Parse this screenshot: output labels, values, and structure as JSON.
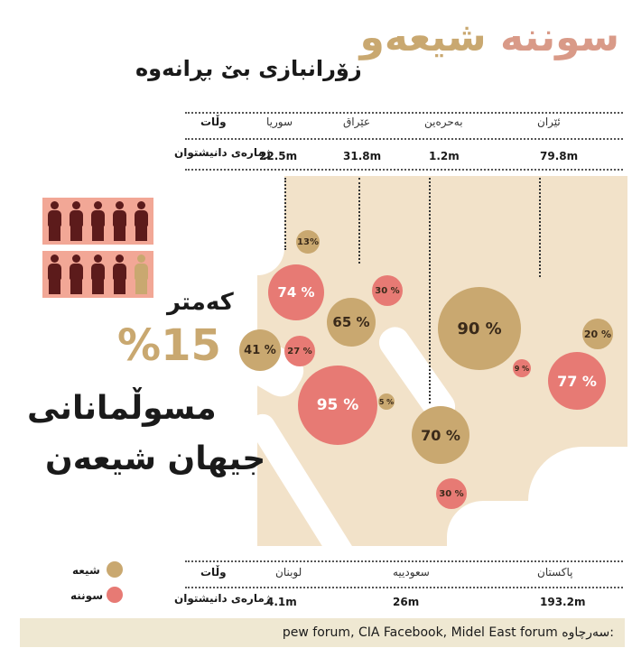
{
  "title": {
    "word1": "شیعەو",
    "word2": "سوننە"
  },
  "subtitle": "زۆرانبازی بێ بڕانەوە",
  "top_table": {
    "header_label": "وڵات",
    "row_label": "ژمارەی دانیشتوان",
    "countries": [
      "سوریا",
      "عێراق",
      "بەحرەین",
      "ئێران"
    ],
    "populations": [
      "22.5m",
      "31.8m",
      "1.2m",
      "79.8m"
    ]
  },
  "bottom_table": {
    "header_label": "وڵات",
    "row_label": "ژمارەی دانیشتوان",
    "countries": [
      "لوبنان",
      "سعودییە",
      "پاکستان"
    ],
    "populations": [
      "4.1m",
      "26m",
      "193.2m"
    ]
  },
  "headline": {
    "less": "کەمتر",
    "percent": "%15",
    "line1": "مسوڵمانانی",
    "line2": "جیهان شیعەن"
  },
  "legend": {
    "shia": "شیعە",
    "sunni": "سوننە"
  },
  "colors": {
    "shia": "#c9a870",
    "sunni": "#e77a74",
    "person_dark": "#5c1b1b",
    "person_light": "#c9a870",
    "panel_bg": "#f2a796"
  },
  "icons": {
    "people_top": "person-icon",
    "people_bottom": "person-icon"
  },
  "people": {
    "top_row_shia": 0,
    "bottom_row_shia": 1,
    "per_row": 5
  },
  "map_labels": {
    "syria_sunni": "74 %",
    "lebanon_shia": "41 %",
    "lebanon_sunni": "27 %",
    "top13": "13%",
    "iraq_shia": "65 %",
    "iraq_sunni": "30 %",
    "saudi_sunni": "95 %",
    "saudi_shia": "5 %",
    "bahrain_shia": "70 %",
    "iran_shia": "90 %",
    "iran_sunni": "9 %",
    "oman_sunni": "30 %",
    "pakistan_shia": "20 %",
    "pakistan_sunni": "77 %"
  },
  "footer": {
    "sources_label": "سەرچاوە:",
    "sources": "pew forum, CIA Facebook, Midel East forum"
  }
}
